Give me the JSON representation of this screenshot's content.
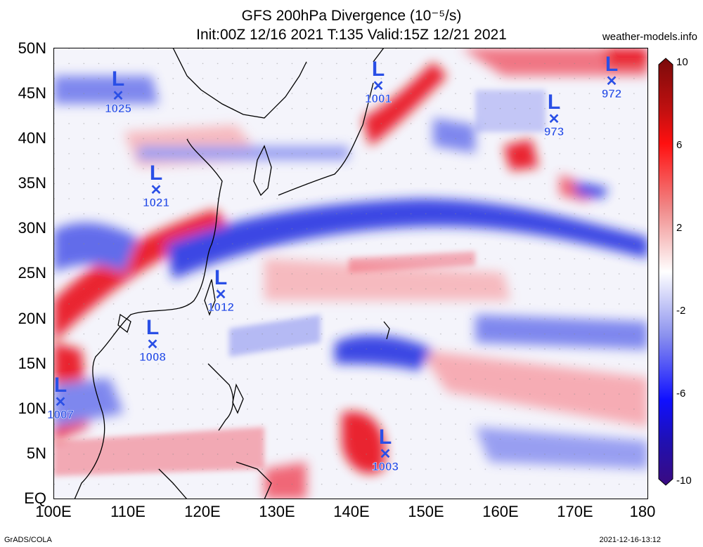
{
  "title_line1": "GFS 200hPa Divergence (10⁻⁵/s)",
  "title_line2": "Init:00Z 12/16 2021 T:135 Valid:15Z 12/21 2021",
  "site": "weather-models.info",
  "footer_left": "GrADS/COLA",
  "footer_right": "2021-12-16-13:12",
  "lat_labels": [
    "50N",
    "45N",
    "40N",
    "35N",
    "30N",
    "25N",
    "20N",
    "15N",
    "10N",
    "5N",
    "EQ"
  ],
  "lon_labels": [
    "100E",
    "110E",
    "120E",
    "130E",
    "140E",
    "150E",
    "160E",
    "170E",
    "180"
  ],
  "colorbar_labels": [
    "10",
    "6",
    "2",
    "-2",
    "-6",
    "-10"
  ],
  "lows": [
    {
      "pressure": "1025"
    },
    {
      "pressure": "1021"
    },
    {
      "pressure": "1012"
    },
    {
      "pressure": "1008"
    },
    {
      "pressure": "1007"
    },
    {
      "pressure": "1001"
    },
    {
      "pressure": "973"
    },
    {
      "pressure": "972"
    },
    {
      "pressure": "1003"
    }
  ],
  "low_symbol": "L",
  "low_center_symbol": "✕",
  "colors": {
    "positive": "#e8000b",
    "negative": "#1f2be0",
    "neutral": "#ffffff",
    "low_marker": "#2a4fe6",
    "coast": "#000000"
  }
}
